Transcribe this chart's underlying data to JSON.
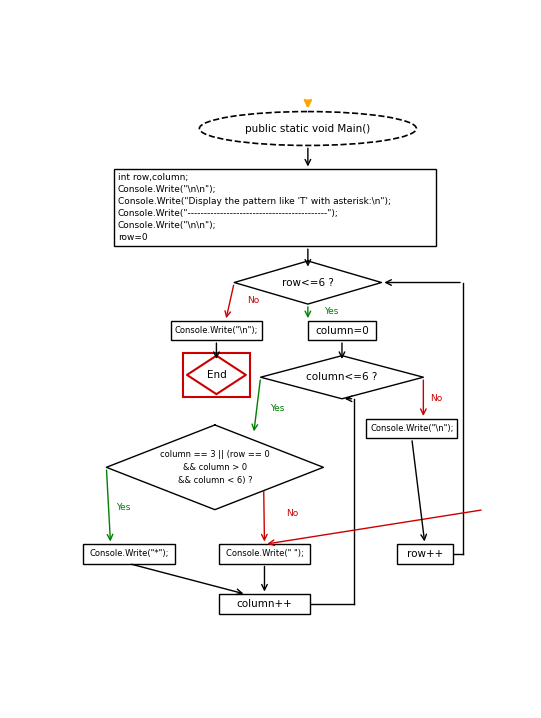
{
  "bg_color": "#ffffff",
  "arrow_color": "#000000",
  "yes_color": "#008000",
  "no_color": "#cc0000",
  "orange_color": "#ffa500",
  "end_border": "#cc0000",
  "fs": 7.5,
  "fs_small": 6.5,
  "fs_mono": 7.0,
  "start_text": "public static void Main()",
  "init_lines": [
    "int row,column;",
    "Console.Write(\"\\n\\n\");",
    "Console.Write(\"Display the pattern like 'T' with asterisk:\\n\");",
    "Console.Write(\"-------------------------------------------\");",
    "Console.Write(\"\\n\\n\");",
    "row=0"
  ],
  "diamond_row_text": "row<=6 ?",
  "box_writeln_text": "Console.Write(\"\\n\");",
  "box_col0_text": "column=0",
  "end_text": "End",
  "diamond_col_text": "column<=6 ?",
  "box_writeln2_text": "Console.Write(\"\\n\");",
  "diamond_cond_lines": [
    "column == 3 || (row == 0",
    "&& column > 0",
    "&& column < 6) ?"
  ],
  "box_star_text": "Console.Write(\"*\");",
  "box_space_text": "Console.Write(\" \");",
  "box_colpp_text": "column++",
  "box_rowpp_text": "row++"
}
